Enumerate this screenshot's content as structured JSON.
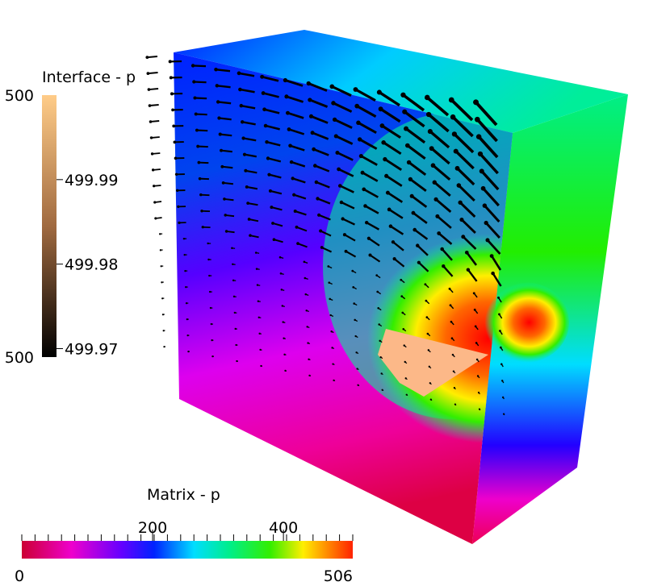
{
  "legends": [
    {
      "title": "Interface - p",
      "range": [
        {
          "value": 500.0,
          "label": "500"
        },
        {
          "value": 499.969,
          "label": "500"
        }
      ],
      "ticks": [
        499.99,
        499.98,
        499.97
      ]
    },
    {
      "title": "Matrix - p",
      "range": [
        0,
        506
      ],
      "ticks": [
        200,
        400
      ]
    }
  ]
}
